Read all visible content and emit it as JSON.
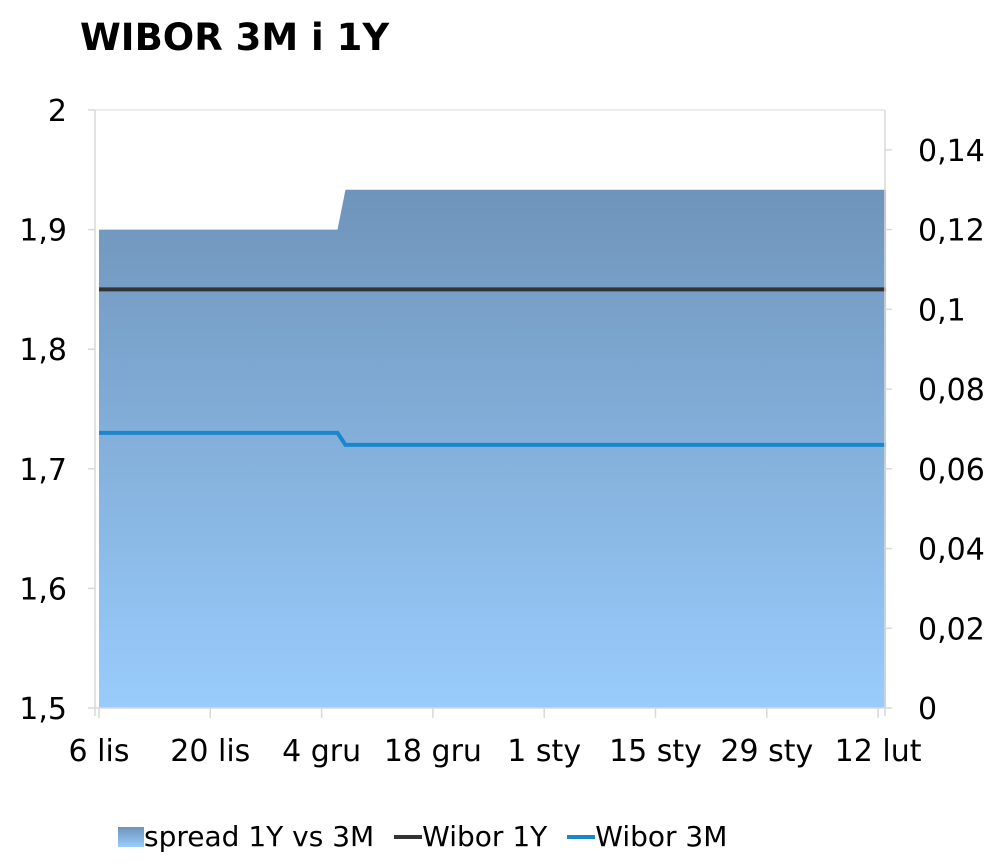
{
  "chart_data": {
    "type": "area",
    "title": "WIBOR 3M i 1Y",
    "x_ticks": [
      "6 lis",
      "20 lis",
      "4 gru",
      "18 gru",
      "1 sty",
      "15 sty",
      "29 sty",
      "12 lut"
    ],
    "y_left": {
      "ylim": [
        1.5,
        2
      ],
      "ticks": [
        "1,5",
        "1,6",
        "1,7",
        "1,8",
        "1,9",
        "2"
      ]
    },
    "y_right": {
      "ylim": [
        0,
        0.15
      ],
      "ticks": [
        "0",
        "0,02",
        "0,04",
        "0,06",
        "0,08",
        "0,1",
        "0,12",
        "0,14"
      ]
    },
    "grid": false,
    "legend_position": "bottom",
    "series": [
      {
        "name": "spread 1Y vs 3M",
        "type": "area",
        "axis": "right",
        "points": [
          [
            "6 lis",
            0.12
          ],
          [
            "6 gru",
            0.12
          ],
          [
            "7 gru",
            0.13
          ],
          [
            "13 lut",
            0.13
          ]
        ],
        "color_top": "#6f94ba",
        "color_bottom": "#99ccfc"
      },
      {
        "name": "Wibor 1Y",
        "type": "line",
        "axis": "left",
        "points": [
          [
            "6 lis",
            1.85
          ],
          [
            "13 lut",
            1.85
          ]
        ],
        "color": "#333333"
      },
      {
        "name": "Wibor 3M",
        "type": "line",
        "axis": "left",
        "points": [
          [
            "6 lis",
            1.73
          ],
          [
            "6 gru",
            1.73
          ],
          [
            "7 gru",
            1.72
          ],
          [
            "13 lut",
            1.72
          ]
        ],
        "color": "#1a86cc"
      }
    ]
  }
}
